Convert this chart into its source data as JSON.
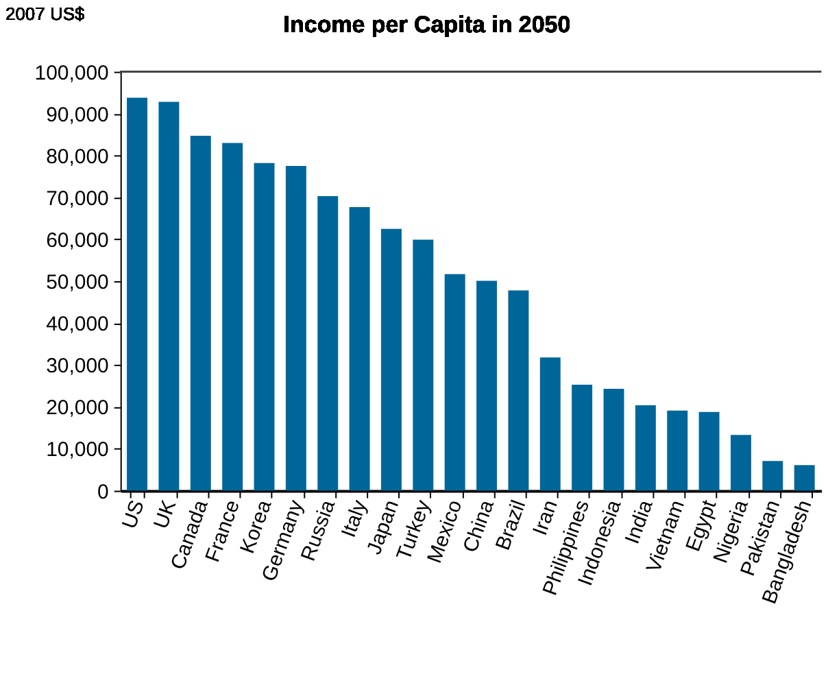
{
  "chart_data": {
    "type": "bar",
    "title": "Income per Capita in 2050",
    "ylabel": "2007 US$",
    "categories": [
      "US",
      "UK",
      "Canada",
      "France",
      "Korea",
      "Germany",
      "Russia",
      "Italy",
      "Japan",
      "Turkey",
      "Mexico",
      "China",
      "Brazil",
      "Iran",
      "Philippines",
      "Indonesia",
      "India",
      "Vietnam",
      "Egypt",
      "Nigeria",
      "Pakistan",
      "Bangladesh"
    ],
    "values": [
      93800,
      92800,
      84700,
      83000,
      78200,
      77500,
      70300,
      67700,
      62500,
      59900,
      51700,
      50100,
      47800,
      31800,
      25300,
      24300,
      20400,
      19100,
      18800,
      13300,
      7100,
      6100
    ],
    "color": "#00669a",
    "ylim": [
      0,
      100000
    ],
    "yticks": [
      0,
      {
        "value": 10000,
        "label": "10,000"
      },
      {
        "value": 20000,
        "label": "20,000"
      },
      {
        "value": 30000,
        "label": "30,000"
      },
      {
        "value": 40000,
        "label": "40,000"
      },
      {
        "value": 50000,
        "label": "50,000"
      },
      {
        "value": 60000,
        "label": "60,000"
      },
      {
        "value": 70000,
        "label": "70,000"
      },
      {
        "value": 80000,
        "label": "80,000"
      },
      {
        "value": 90000,
        "label": "90,000"
      },
      {
        "value": 100000,
        "label": "100,000"
      }
    ],
    "grid": false
  }
}
